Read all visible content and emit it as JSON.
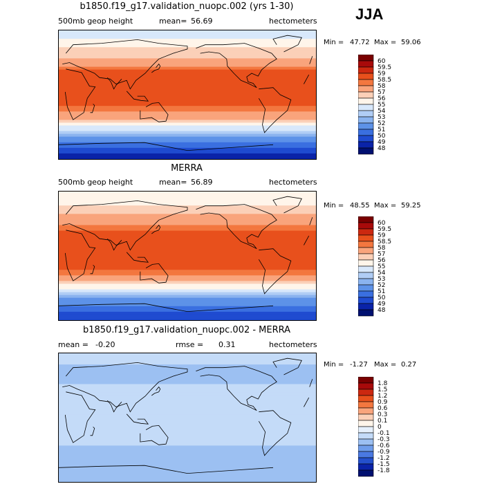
{
  "season": "JJA",
  "chart_data": [
    {
      "type": "heatmap",
      "title": "b1850.f19_g17.validation_nuopc.002 (yrs 1-30)",
      "variable": "500mb geop height",
      "mean_label": "mean=",
      "mean": "56.69",
      "units": "hectometers",
      "min_label": "Min =",
      "min": "47.72",
      "max_label": "Max =",
      "max": "59.06",
      "colorbar_levels": [
        "60",
        "59.5",
        "59",
        "58.5",
        "58",
        "57",
        "56",
        "55",
        "54",
        "53",
        "52",
        "51",
        "50",
        "49",
        "48"
      ],
      "colorbar_colors": [
        "#7a0000",
        "#a80a0a",
        "#cc2810",
        "#e8501c",
        "#f3773f",
        "#f9a47c",
        "#fbd0b8",
        "#fff5ea",
        "#d8e8fb",
        "#b0cdf5",
        "#8ab3ef",
        "#5d92e8",
        "#3a6fe0",
        "#1f4bd0",
        "#0a23a8",
        "#001070"
      ],
      "lat_profile": [
        [
          90,
          54.6
        ],
        [
          75,
          55.2
        ],
        [
          60,
          56.4
        ],
        [
          45,
          57.6
        ],
        [
          30,
          58.8
        ],
        [
          15,
          58.9
        ],
        [
          0,
          58.7
        ],
        [
          -15,
          58.6
        ],
        [
          -30,
          57.7
        ],
        [
          -45,
          54.9
        ],
        [
          -60,
          51.6
        ],
        [
          -75,
          49.8
        ],
        [
          -90,
          48.3
        ]
      ]
    },
    {
      "type": "heatmap",
      "title": "MERRA",
      "variable": "500mb geop height",
      "mean_label": "mean=",
      "mean": "56.89",
      "units": "hectometers",
      "min_label": "Min =",
      "min": "48.55",
      "max_label": "Max =",
      "max": "59.25",
      "colorbar_levels": [
        "60",
        "59.5",
        "59",
        "58.5",
        "58",
        "57",
        "56",
        "55",
        "54",
        "53",
        "52",
        "51",
        "50",
        "49",
        "48"
      ],
      "colorbar_colors": [
        "#7a0000",
        "#a80a0a",
        "#cc2810",
        "#e8501c",
        "#f3773f",
        "#f9a47c",
        "#fbd0b8",
        "#fff5ea",
        "#d8e8fb",
        "#b0cdf5",
        "#8ab3ef",
        "#5d92e8",
        "#3a6fe0",
        "#1f4bd0",
        "#0a23a8",
        "#001070"
      ],
      "lat_profile": [
        [
          90,
          55.0
        ],
        [
          75,
          55.6
        ],
        [
          60,
          56.8
        ],
        [
          45,
          57.9
        ],
        [
          30,
          58.9
        ],
        [
          15,
          59.0
        ],
        [
          0,
          58.8
        ],
        [
          -15,
          58.7
        ],
        [
          -30,
          57.9
        ],
        [
          -45,
          55.2
        ],
        [
          -60,
          52.0
        ],
        [
          -75,
          50.4
        ],
        [
          -90,
          49.0
        ]
      ]
    },
    {
      "type": "heatmap",
      "title": "b1850.f19_g17.validation_nuopc.002 - MERRA",
      "mean_label": "mean =",
      "mean": "-0.20",
      "rmse_label": "rmse =",
      "rmse": "0.31",
      "units": "hectometers",
      "min_label": "Min =",
      "min": "-1.27",
      "max_label": "Max =",
      "max": "0.27",
      "colorbar_levels": [
        "1.8",
        "1.5",
        "1.2",
        "0.9",
        "0.6",
        "0.3",
        "0.1",
        "0",
        "-0.1",
        "-0.3",
        "-0.6",
        "-0.9",
        "-1.2",
        "-1.5",
        "-1.8"
      ],
      "colorbar_colors": [
        "#7a0000",
        "#a80a0a",
        "#cc2810",
        "#e8501c",
        "#f3773f",
        "#f9a47c",
        "#fbd0b8",
        "#fff5ea",
        "#e6f0fc",
        "#c4dbf8",
        "#9cc0f2",
        "#6f9deb",
        "#4a79e2",
        "#2450cc",
        "#0a23a8",
        "#001070"
      ],
      "lat_profile": [
        [
          90,
          -0.2
        ],
        [
          75,
          -0.3
        ],
        [
          60,
          -0.5
        ],
        [
          45,
          -0.3
        ],
        [
          30,
          -0.2
        ],
        [
          15,
          -0.1
        ],
        [
          0,
          -0.15
        ],
        [
          -15,
          -0.2
        ],
        [
          -30,
          -0.2
        ],
        [
          -45,
          -0.4
        ],
        [
          -60,
          -0.6
        ],
        [
          -75,
          -0.4
        ],
        [
          -90,
          -0.3
        ]
      ]
    }
  ]
}
